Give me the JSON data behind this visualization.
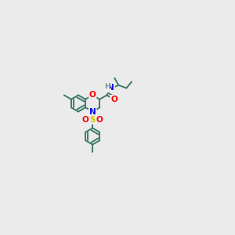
{
  "bg_color": "#ebebeb",
  "bond_color": "#3d7a6a",
  "atom_colors": {
    "O": "#ff0000",
    "N": "#0000ee",
    "S": "#cccc00",
    "H": "#7a9090"
  },
  "lw": 1.4,
  "dbo": 0.018,
  "fs": 7.5,
  "r": 0.105
}
